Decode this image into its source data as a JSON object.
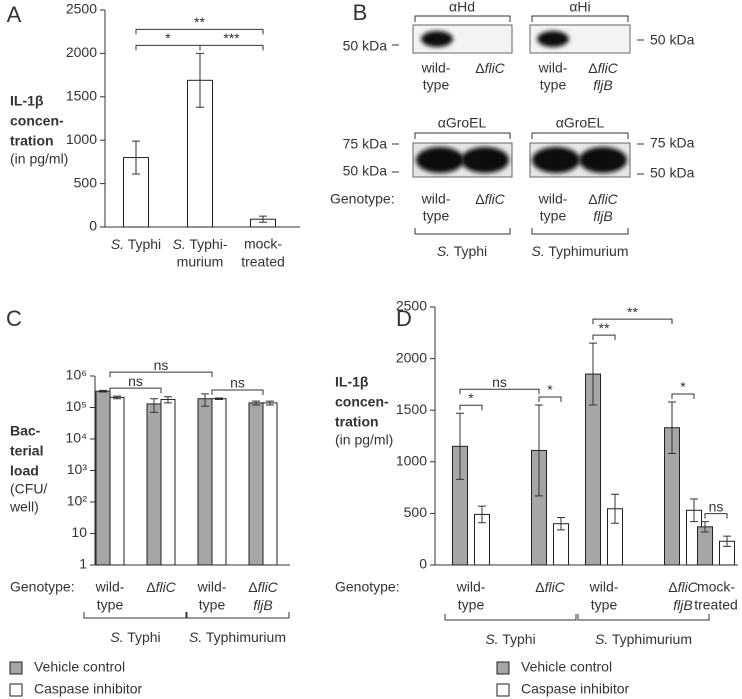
{
  "chart_data": [
    {
      "type": "bar",
      "panel": "A",
      "ylabel": [
        "IL-1β",
        "concen-",
        "tration"
      ],
      "ylabel_note": [
        "(in pg/ml)"
      ],
      "categories": [
        [
          "S. Typhi"
        ],
        [
          "S. Typhi-",
          "murium"
        ],
        [
          "mock-",
          "treated"
        ]
      ],
      "values": [
        800,
        1690,
        90
      ],
      "errors": [
        190,
        310,
        35
      ],
      "color": "#ffffff",
      "ylim": [
        0,
        2500
      ],
      "yticks": [
        0,
        500,
        1000,
        1500,
        2000,
        2500
      ],
      "comparisons": [
        {
          "from": [
            0
          ],
          "to": [
            1
          ],
          "label": "*"
        },
        {
          "from": [
            1
          ],
          "to": [
            2
          ],
          "label": "***"
        },
        {
          "from": [
            0
          ],
          "to": [
            2
          ],
          "label": "**"
        }
      ]
    },
    {
      "type": "bar",
      "panel": "C",
      "log": true,
      "ylabel": [
        "Bac-",
        "terial",
        "load"
      ],
      "ylabel_note": [
        "(CFU/",
        "well)"
      ],
      "category_axis_label": "Genotype:",
      "categories": [
        [
          "wild-",
          "type"
        ],
        [
          "ΔfliC"
        ],
        [
          "wild-",
          "type"
        ],
        [
          "ΔfliC",
          "fljB"
        ]
      ],
      "groups": [
        {
          "label": "S. Typhi",
          "from": 0,
          "to": 1
        },
        {
          "label": "S. Typhimurium",
          "from": 2,
          "to": 3
        }
      ],
      "series": [
        {
          "name": "Vehicle control",
          "color": "#a6a6a6",
          "values": [
            330000,
            130000,
            190000,
            140000
          ],
          "errors": [
            20000,
            60000,
            80000,
            20000
          ]
        },
        {
          "name": "Caspase inhibitor",
          "color": "#ffffff",
          "values": [
            210000,
            180000,
            190000,
            140000
          ],
          "errors": [
            20000,
            40000,
            10000,
            20000
          ]
        }
      ],
      "ylim": [
        1,
        1000000
      ],
      "yticks": [
        1,
        10,
        {
          "value": 100,
          "label": "10²"
        },
        {
          "value": 1000,
          "label": "10³"
        },
        {
          "value": 10000,
          "label": "10⁴"
        },
        {
          "value": 100000,
          "label": "10⁵"
        },
        {
          "value": 1000000,
          "label": "10⁶"
        }
      ],
      "comparisons": [
        {
          "from": [
            0
          ],
          "to": [
            1
          ],
          "label": "ns"
        },
        {
          "from": [
            2
          ],
          "to": [
            3
          ],
          "label": "ns"
        },
        {
          "from": [
            0
          ],
          "to": [
            2
          ],
          "label": "ns"
        }
      ]
    },
    {
      "type": "bar",
      "panel": "D",
      "ylabel": [
        "IL-1β",
        "concen-",
        "tration"
      ],
      "ylabel_note": [
        "(in pg/ml)"
      ],
      "category_axis_label": "Genotype:",
      "categories": [
        [
          "wild-",
          "type"
        ],
        [
          "ΔfliC"
        ],
        [
          "wild-",
          "type"
        ],
        [
          "ΔfliC",
          "fljB"
        ],
        [
          "mock-",
          "treated"
        ]
      ],
      "groups": [
        {
          "label": "S. Typhi",
          "from": 0,
          "to": 1
        },
        {
          "label": "S. Typhimurium",
          "from": 2,
          "to": 3
        }
      ],
      "series": [
        {
          "name": "Vehicle control",
          "color": "#a6a6a6",
          "values": [
            1150,
            1110,
            1850,
            1330,
            370
          ],
          "errors": [
            320,
            440,
            300,
            250,
            50
          ]
        },
        {
          "name": "Caspase inhibitor",
          "color": "#ffffff",
          "values": [
            490,
            400,
            545,
            530,
            230
          ],
          "errors": [
            80,
            60,
            140,
            110,
            50
          ]
        }
      ],
      "ylim": [
        0,
        2500
      ],
      "yticks": [
        0,
        500,
        1000,
        1500,
        2000,
        2500
      ],
      "comparisons": [
        {
          "from": [
            0,
            0
          ],
          "to": [
            0,
            1
          ],
          "label": "*"
        },
        {
          "from": [
            0,
            0
          ],
          "to": [
            1,
            0
          ],
          "label": "ns"
        },
        {
          "from": [
            1,
            0
          ],
          "to": [
            1,
            1
          ],
          "label": "*"
        },
        {
          "from": [
            2,
            0
          ],
          "to": [
            2,
            1
          ],
          "label": "**"
        },
        {
          "from": [
            2,
            0
          ],
          "to": [
            3,
            0
          ],
          "label": "**"
        },
        {
          "from": [
            3,
            0
          ],
          "to": [
            3,
            1
          ],
          "label": "*"
        },
        {
          "from": [
            4,
            0
          ],
          "to": [
            4,
            1
          ],
          "label": "ns"
        }
      ]
    }
  ],
  "blot": {
    "panel": "B",
    "top_antibodies": [
      "αHd",
      "αHi"
    ],
    "top_markers": [
      "50 kDa",
      "50 kDa"
    ],
    "bottom_antibodies": [
      "αGroEL",
      "αGroEL"
    ],
    "bottom_markers_left": [
      "75 kDa",
      "50 kDa"
    ],
    "bottom_markers_right": [
      "75 kDa",
      "50 kDa"
    ],
    "genotype_label": "Genotype:",
    "lanes": [
      [
        "wild-",
        "type"
      ],
      [
        "ΔfliC"
      ],
      [
        "wild-",
        "type"
      ],
      [
        "ΔfliC",
        "fljB"
      ]
    ],
    "strains": [
      "S. Typhi",
      "S. Typhimurium"
    ]
  }
}
